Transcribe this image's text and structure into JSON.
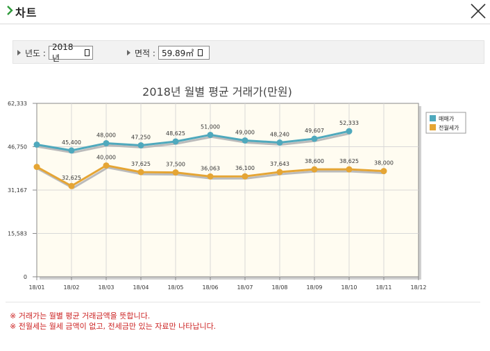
{
  "header": {
    "title": "차트",
    "close_icon": "close-x-icon",
    "chevron_icon": "chevron-right-icon"
  },
  "filters": {
    "year_label": "년도 :",
    "year_value": "2018년",
    "area_label": "면적 :",
    "area_value": "59.89㎡"
  },
  "notes": [
    "※ 거래가는 월별 평균 거래금액을 뜻합니다.",
    "※ 전월세는 월세 금액이 없고, 전세금만 있는 자료만 나타납니다."
  ],
  "colors": {
    "sale": "#4fa9bd",
    "rent": "#e5a534",
    "plot_bg": "#fffcf1",
    "notes": "#cc2222"
  },
  "chart_data": {
    "type": "line",
    "title": "2018년 월별 평균 거래가(만원)",
    "categories": [
      "18/01",
      "18/02",
      "18/03",
      "18/04",
      "18/05",
      "18/06",
      "18/07",
      "18/08",
      "18/09",
      "18/10",
      "18/11",
      "18/12"
    ],
    "y_ticks": [
      "62,333",
      "46,750",
      "31,167",
      "15,583",
      "0"
    ],
    "ylim": [
      0,
      62333
    ],
    "grid": true,
    "legend_position": "right",
    "series": [
      {
        "name": "매매가",
        "color": "#4fa9bd",
        "values": [
          47500,
          45400,
          48000,
          47250,
          48625,
          51000,
          49000,
          48240,
          49607,
          52333,
          null,
          null
        ],
        "labels": [
          "",
          "45,400",
          "48,000",
          "47,250",
          "48,625",
          "51,000",
          "49,000",
          "48,240",
          "49,607",
          "52,333",
          "",
          ""
        ]
      },
      {
        "name": "전월세가",
        "color": "#e5a534",
        "values": [
          39500,
          32625,
          40000,
          37625,
          37500,
          36063,
          36100,
          37643,
          38600,
          38625,
          38000,
          null
        ],
        "labels": [
          "",
          "32,625",
          "40,000",
          "37,625",
          "37,500",
          "36,063",
          "36,100",
          "37,643",
          "38,600",
          "38,625",
          "38,000",
          ""
        ]
      }
    ]
  }
}
